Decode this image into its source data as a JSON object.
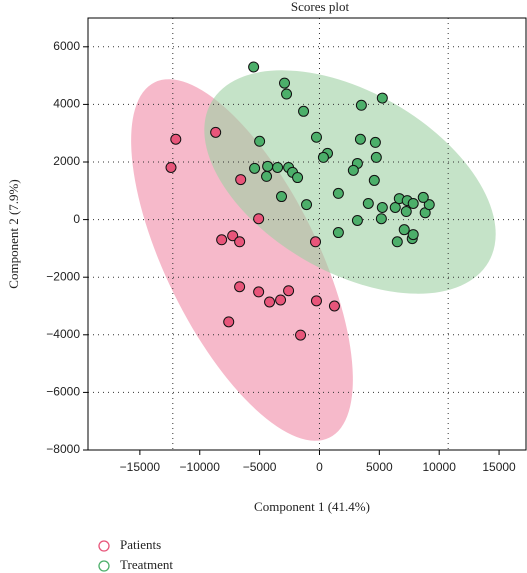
{
  "chart_data": {
    "type": "scatter",
    "title": "Scores plot",
    "x_label": "Component 1 (41.4%)",
    "y_label": "Component 2 (7.9%)",
    "xlim": [
      -19333,
      17250
    ],
    "ylim": [
      -8000,
      7000
    ],
    "xticks": [
      {
        "value": -15000,
        "label": "−15000"
      },
      {
        "value": -10000,
        "label": "−10000"
      },
      {
        "value": -5000,
        "label": "−5000"
      },
      0,
      5000,
      10000,
      15000
    ],
    "yticks": [
      {
        "value": -8000,
        "label": "−8000"
      },
      {
        "value": -6000,
        "label": "−6000"
      },
      {
        "value": -4000,
        "label": "−4000"
      },
      {
        "value": -2000,
        "label": "−2000"
      },
      0,
      2000,
      4000,
      6000
    ],
    "xgrid": [
      -12250,
      0,
      10750
    ],
    "grid": true,
    "series": [
      {
        "name": "Patients",
        "color": "#e8557a",
        "x": [
          -12000,
          -12400,
          -8670,
          -6580,
          -8170,
          -7250,
          -6670,
          -5080,
          -6670,
          -5080,
          -7580,
          -4170,
          -3250,
          -2580,
          -1580,
          -250,
          1250,
          -330
        ],
        "y": [
          2790,
          1810,
          3030,
          1390,
          -700,
          -560,
          -770,
          30,
          -2330,
          -2510,
          -3550,
          -2860,
          -2790,
          -2470,
          -4010,
          -2820,
          -3000,
          -770
        ]
      },
      {
        "name": "Treatment",
        "color": "#4caf6a",
        "x": [
          -5500,
          -2920,
          -2750,
          -1330,
          -5000,
          -250,
          670,
          330,
          3420,
          3500,
          5250,
          4750,
          4670,
          3170,
          2830,
          -5420,
          -4330,
          -3500,
          -2580,
          -2250,
          -1830,
          -4420,
          -3170,
          -1080,
          1580,
          1580,
          3170,
          4080,
          4580,
          5250,
          5170,
          6330,
          6500,
          6670,
          7080,
          7330,
          7830,
          7250,
          7750,
          7830,
          8830,
          9170,
          8670
        ],
        "y": [
          5300,
          4740,
          4360,
          3760,
          2720,
          2860,
          2300,
          2160,
          2790,
          3970,
          4220,
          2160,
          2680,
          1950,
          1710,
          1780,
          1850,
          1810,
          1810,
          1640,
          1460,
          1500,
          800,
          520,
          910,
          -450,
          -30,
          560,
          1360,
          420,
          30,
          420,
          -770,
          730,
          -350,
          660,
          560,
          280,
          -660,
          -520,
          240,
          520,
          770
        ]
      }
    ]
  }
}
